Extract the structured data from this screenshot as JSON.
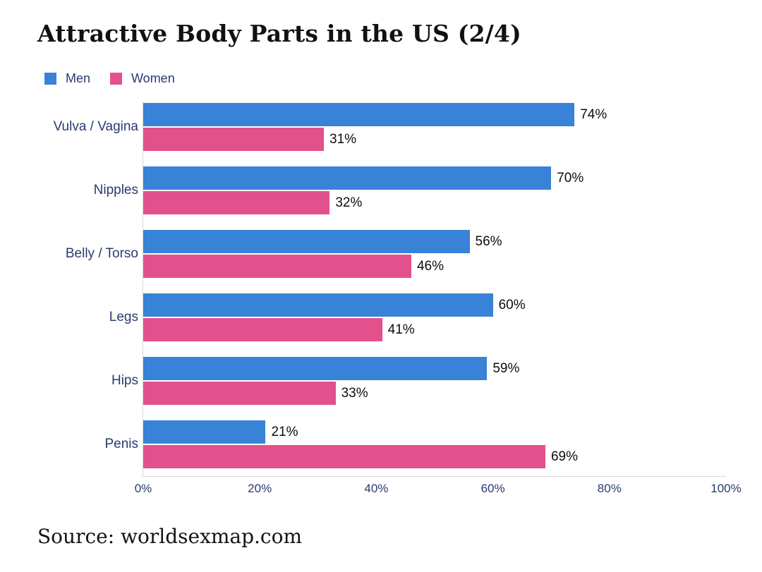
{
  "header": {
    "title": "Attractive Body Parts in the US (2/4)"
  },
  "footer": {
    "source": "Source: worldsexmap.com"
  },
  "colors": {
    "men": "#3882d8",
    "women": "#e2518b",
    "label_text": "#2a3b6e",
    "axis_line": "#d9d9d9",
    "value_text": "#0d0d0d"
  },
  "chart_data": {
    "type": "bar",
    "orientation": "horizontal",
    "title": "Attractive Body Parts in the US (2/4)",
    "categories": [
      "Vulva / Vagina",
      "Nipples",
      "Belly / Torso",
      "Legs",
      "Hips",
      "Penis"
    ],
    "series": [
      {
        "name": "Men",
        "color": "#3882d8",
        "values": [
          74,
          70,
          56,
          60,
          59,
          21
        ]
      },
      {
        "name": "Women",
        "color": "#e2518b",
        "values": [
          31,
          32,
          46,
          41,
          33,
          69
        ]
      }
    ],
    "value_suffix": "%",
    "xlabel": "",
    "ylabel": "",
    "xlim": [
      0,
      100
    ],
    "x_ticks": [
      0,
      20,
      40,
      60,
      80,
      100
    ],
    "x_tick_labels": [
      "0%",
      "20%",
      "40%",
      "60%",
      "80%",
      "100%"
    ],
    "legend_position": "top-left",
    "grid": false,
    "data_labels": true
  }
}
